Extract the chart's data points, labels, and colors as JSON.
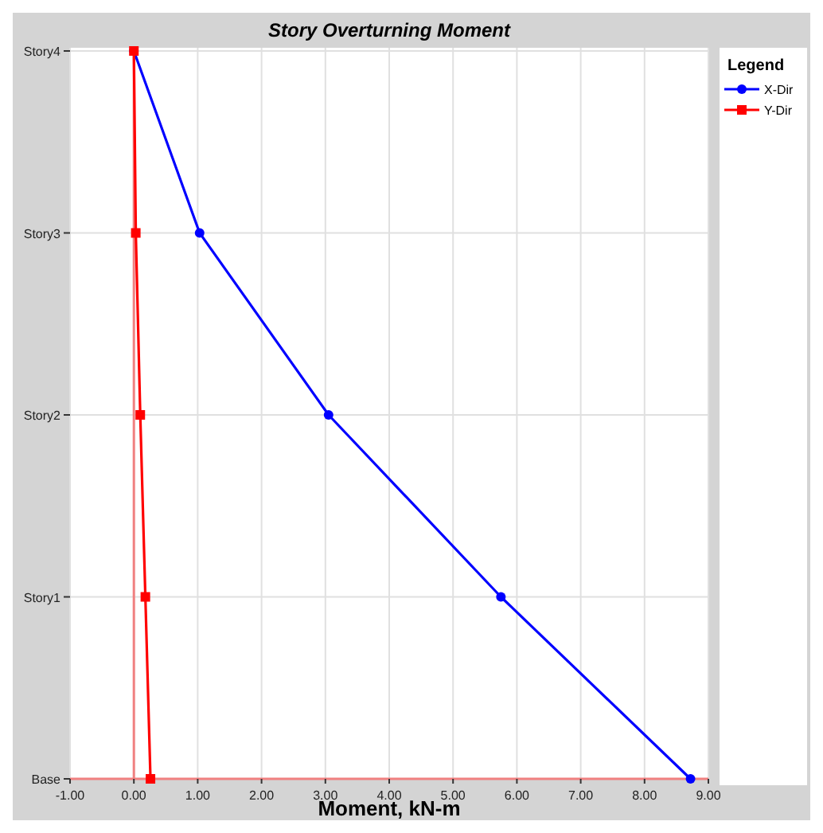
{
  "chart_data": {
    "type": "line",
    "orientation": "horizontal",
    "title": "Story Overturning Moment",
    "xlabel": "Moment, kN-m",
    "legend_title": "Legend",
    "legend": "right",
    "grid": true,
    "xlim": [
      -1,
      9
    ],
    "xticks": [
      {
        "value": -1,
        "label": "-1.00"
      },
      {
        "value": 0,
        "label": "0.00"
      },
      {
        "value": 1,
        "label": "1.00"
      },
      {
        "value": 2,
        "label": "2.00"
      },
      {
        "value": 3,
        "label": "3.00"
      },
      {
        "value": 4,
        "label": "4.00"
      },
      {
        "value": 5,
        "label": "5.00"
      },
      {
        "value": 6,
        "label": "6.00"
      },
      {
        "value": 7,
        "label": "7.00"
      },
      {
        "value": 8,
        "label": "8.00"
      },
      {
        "value": 9,
        "label": "9.00"
      }
    ],
    "categories": [
      "Story4",
      "Story3",
      "Story2",
      "Story1",
      "Base"
    ],
    "ref_lines": [
      {
        "axis": "x",
        "value": 0,
        "color": "#f08080"
      }
    ],
    "series": [
      {
        "name": "X-Dir",
        "color": "#0000ff",
        "marker": "circle",
        "values": [
          0,
          1.03,
          3.05,
          5.75,
          8.72
        ]
      },
      {
        "name": "Y-Dir",
        "color": "#ff0000",
        "marker": "square",
        "values": [
          0,
          0.03,
          0.1,
          0.18,
          0.26
        ]
      }
    ]
  }
}
